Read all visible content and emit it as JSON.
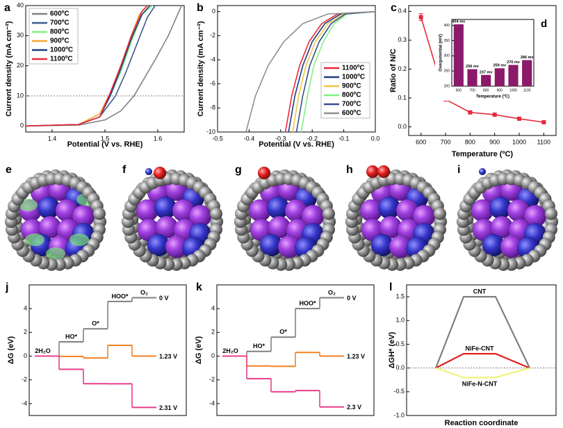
{
  "chart_data": [
    {
      "type": "line",
      "label": "a",
      "xlabel": "Potential (V vs. RHE)",
      "ylabel": "Current density (mA cm⁻²)",
      "xlim": [
        1.35,
        1.65
      ],
      "xticks": [
        1.4,
        1.5,
        1.6
      ],
      "ylim": [
        -2,
        40
      ],
      "yticks": [
        0,
        10,
        20,
        30,
        40
      ],
      "reference_line": 10,
      "legend": "upper left",
      "series": [
        {
          "name": "600ºC",
          "color": "#808080",
          "x": [
            1.35,
            1.45,
            1.5,
            1.53,
            1.555,
            1.575,
            1.595,
            1.62,
            1.645
          ],
          "values": [
            0,
            0.3,
            2,
            5,
            10,
            16,
            22,
            30,
            40
          ]
        },
        {
          "name": "700ºC",
          "color": "#3a5a8c",
          "x": [
            1.35,
            1.45,
            1.49,
            1.52,
            1.54,
            1.56,
            1.58,
            1.595
          ],
          "values": [
            0,
            0.5,
            3,
            10,
            18,
            27,
            36,
            40
          ]
        },
        {
          "name": "800ºC",
          "color": "#7cf27c",
          "x": [
            1.35,
            1.45,
            1.49,
            1.51,
            1.53,
            1.55,
            1.57,
            1.59
          ],
          "values": [
            0,
            0.5,
            3,
            10,
            18,
            28,
            37,
            40
          ]
        },
        {
          "name": "900ºC",
          "color": "#f0a830",
          "x": [
            1.35,
            1.45,
            1.49,
            1.51,
            1.53,
            1.55,
            1.565,
            1.58
          ],
          "values": [
            0,
            0.5,
            4,
            11,
            20,
            30,
            37,
            40
          ]
        },
        {
          "name": "1000ºC",
          "color": "#1e3a80",
          "x": [
            1.35,
            1.45,
            1.49,
            1.51,
            1.53,
            1.55,
            1.57,
            1.585
          ],
          "values": [
            0,
            0.5,
            3,
            10,
            19,
            29,
            37,
            40
          ]
        },
        {
          "name": "1100ºC",
          "color": "#e8283c",
          "x": [
            1.35,
            1.45,
            1.49,
            1.51,
            1.53,
            1.55,
            1.57,
            1.58
          ],
          "values": [
            0,
            0.5,
            3,
            11,
            20,
            30,
            38,
            40
          ]
        }
      ]
    },
    {
      "type": "line",
      "label": "b",
      "xlabel": "Potential (V vs. RHE)",
      "ylabel": "Current density (mA cm⁻²)",
      "xlim": [
        -0.5,
        0
      ],
      "xticks": [
        -0.5,
        -0.4,
        -0.3,
        -0.2,
        -0.1,
        {
          "value": 0,
          "label": "0.0"
        }
      ],
      "ylim": [
        -10,
        0.5
      ],
      "yticks": [
        -10,
        -8,
        -6,
        -4,
        -2,
        0
      ],
      "legend": "lower right",
      "series": [
        {
          "name": "1100ºC",
          "color": "#e8283c",
          "x": [
            0,
            -0.12,
            -0.17,
            -0.21,
            -0.24,
            -0.265,
            -0.285
          ],
          "values": [
            0,
            -0.2,
            -1,
            -2.5,
            -4.5,
            -7,
            -10
          ]
        },
        {
          "name": "1000ºC",
          "color": "#1e3a80",
          "x": [
            0,
            -0.11,
            -0.16,
            -0.2,
            -0.23,
            -0.255,
            -0.275
          ],
          "values": [
            0,
            -0.2,
            -1,
            -2.5,
            -4.5,
            -7,
            -10
          ]
        },
        {
          "name": "900ºC",
          "color": "#f0c840",
          "x": [
            0,
            -0.1,
            -0.15,
            -0.19,
            -0.22,
            -0.243,
            -0.262
          ],
          "values": [
            0,
            -0.2,
            -1,
            -2.5,
            -4.5,
            -7,
            -10
          ]
        },
        {
          "name": "800ºC",
          "color": "#80f080",
          "x": [
            0,
            -0.09,
            -0.13,
            -0.165,
            -0.195,
            -0.215,
            -0.235
          ],
          "values": [
            0,
            -0.2,
            -1,
            -2.5,
            -4.5,
            -7,
            -10
          ]
        },
        {
          "name": "700ºC",
          "color": "#34508a",
          "x": [
            0,
            -0.095,
            -0.14,
            -0.178,
            -0.208,
            -0.23,
            -0.25
          ],
          "values": [
            0,
            -0.2,
            -1,
            -2.5,
            -4.5,
            -7,
            -10
          ]
        },
        {
          "name": "600ºC",
          "color": "#909090",
          "x": [
            0,
            -0.15,
            -0.23,
            -0.29,
            -0.34,
            -0.38,
            -0.41
          ],
          "values": [
            0,
            -0.2,
            -1,
            -2.5,
            -4.5,
            -7,
            -10
          ]
        }
      ]
    },
    {
      "type": "line",
      "label": "c",
      "xlabel": "Temperature (ºC)",
      "ylabel": "Ratio of N/C",
      "xlim": [
        550,
        1150
      ],
      "xticks": [
        600,
        700,
        800,
        900,
        1000,
        1100
      ],
      "ylim": [
        -0.03,
        0.42
      ],
      "yticks": [
        {
          "value": 0,
          "label": "0.0"
        },
        0.1,
        0.2,
        0.3,
        0.4
      ],
      "x": [
        600,
        700,
        800,
        900,
        1000,
        1100
      ],
      "color": "#e8283c",
      "series": [
        {
          "color": "#e8283c",
          "values": [
            0.38,
            0.095,
            0.05,
            0.042,
            0.028,
            0.016
          ],
          "errors": [
            0.012,
            0.006,
            0.003,
            0.003,
            0.003,
            0.003
          ]
        }
      ]
    },
    {
      "type": "bar",
      "label": "d",
      "xlabel": "Temperature (ºC)",
      "ylabel": "Overpotential (mV)",
      "categories": [
        "600",
        "700",
        "800",
        "900",
        "1000",
        "1100"
      ],
      "color": "#8b1a6b",
      "values": [
        404,
        256,
        237,
        259,
        270,
        286
      ],
      "value_labels": [
        "404 mv",
        "256 mv",
        "237 mv",
        "259 mv",
        "270 mv",
        "286 mv"
      ],
      "ylim": [
        200,
        420
      ],
      "yticks": [
        200,
        250,
        300,
        350,
        400
      ]
    },
    {
      "type": "step",
      "label": "j",
      "ylabel": "ΔG (eV)",
      "ylim": [
        -5,
        6
      ],
      "yticks": [
        -4,
        -2,
        0,
        2,
        4
      ],
      "steps": [
        "2H₂O",
        "HO*",
        "O*",
        "HOO*",
        "O₂"
      ],
      "series": [
        {
          "name": "0 V",
          "color": "#808080",
          "values": [
            0,
            1.2,
            2.3,
            4.6,
            4.92
          ]
        },
        {
          "name": "1.23 V",
          "color": "#f08020",
          "values": [
            0,
            -0.03,
            -0.16,
            0.91,
            0
          ]
        },
        {
          "name": "2.31 V",
          "color": "#e83e8c",
          "values": [
            0,
            -1.11,
            -2.32,
            -2.33,
            -4.32
          ]
        }
      ]
    },
    {
      "type": "step",
      "label": "k",
      "ylabel": "ΔG (eV)",
      "ylim": [
        -5,
        6
      ],
      "yticks": [
        -4,
        -2,
        0,
        2,
        4
      ],
      "steps": [
        "2H₂O",
        "HO*",
        "O*",
        "HOO*",
        "O₂"
      ],
      "series": [
        {
          "name": "0 V",
          "color": "#808080",
          "values": [
            0,
            0.4,
            1.6,
            4.0,
            4.92
          ]
        },
        {
          "name": "1.23 V",
          "color": "#f08020",
          "values": [
            0,
            -0.83,
            -0.86,
            0.31,
            0
          ]
        },
        {
          "name": "2.3 V",
          "color": "#e83e8c",
          "values": [
            0,
            -1.9,
            -3.0,
            -2.9,
            -4.28
          ]
        }
      ]
    },
    {
      "type": "line",
      "label": "l",
      "xlabel": "Reaction coordinate",
      "ylabel": "ΔGH* (eV)",
      "ylim": [
        -1,
        1.75
      ],
      "yticks": [
        {
          "value": -1,
          "label": "-1.0"
        },
        {
          "value": -0.5,
          "label": "-0.5"
        },
        {
          "value": 0,
          "label": "0.0"
        },
        0.5,
        {
          "value": 1,
          "label": "1.0"
        },
        1.5
      ],
      "reference_line": 0,
      "series": [
        {
          "name": "CNT",
          "color": "#7f7f7f",
          "values": [
            0,
            1.5,
            1.5,
            0
          ]
        },
        {
          "name": "NiFe-CNT",
          "color": "#e02020",
          "values": [
            0,
            0.3,
            0.3,
            0
          ]
        },
        {
          "name": "NiFe-N-CNT",
          "color": "#eef27a",
          "values": [
            0,
            -0.2,
            -0.2,
            0
          ]
        }
      ]
    }
  ],
  "images": [
    {
      "label": "e"
    },
    {
      "label": "f"
    },
    {
      "label": "g"
    },
    {
      "label": "h"
    },
    {
      "label": "i"
    }
  ]
}
